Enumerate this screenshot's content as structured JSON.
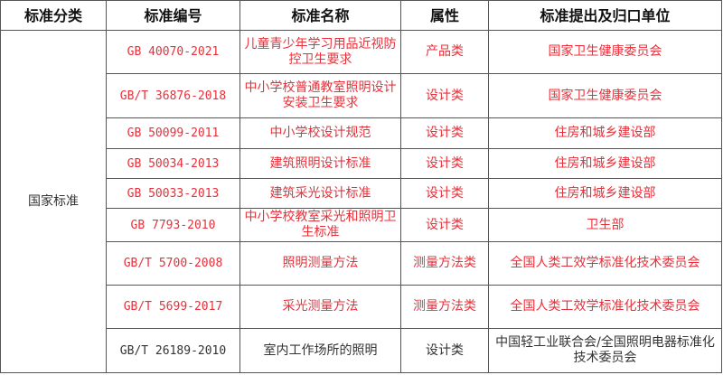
{
  "headers": [
    "标准分类",
    "标准编号",
    "标准名称",
    "属性",
    "标准提出及归口单位"
  ],
  "category": "国家标准",
  "colors": {
    "highlight": "#e8303a",
    "normal": "#333333"
  },
  "rows": [
    {
      "code": "GB 40070-2021",
      "name": "儿童青少年学习用品近视防控卫生要求",
      "type": "产品类",
      "org": "国家卫生健康委员会",
      "highlight": true
    },
    {
      "code": "GB/T 36876-2018",
      "name": "中小学校普通教室照明设计安装卫生要求",
      "type": "设计类",
      "org": "国家卫生健康委员会",
      "highlight": true
    },
    {
      "code": "GB 50099-2011",
      "name": "中小学校设计规范",
      "type": "设计类",
      "org": "住房和城乡建设部",
      "highlight": true
    },
    {
      "code": "GB 50034-2013",
      "name": "建筑照明设计标准",
      "type": "设计类",
      "org": "住房和城乡建设部",
      "highlight": true
    },
    {
      "code": "GB 50033-2013",
      "name": "建筑采光设计标准",
      "type": "设计类",
      "org": "住房和城乡建设部",
      "highlight": true
    },
    {
      "code": "GB 7793-2010",
      "name": "中小学校教室采光和照明卫生标准",
      "type": "设计类",
      "org": "卫生部",
      "highlight": true
    },
    {
      "code": "GB/T 5700-2008",
      "name": "照明测量方法",
      "type": "测量方法类",
      "org": "全国人类工效学标准化技术委员会",
      "highlight": true
    },
    {
      "code": "GB/T 5699-2017",
      "name": "采光测量方法",
      "type": "测量方法类",
      "org": "全国人类工效学标准化技术委员会",
      "highlight": true
    },
    {
      "code": "GB/T 26189-2010",
      "name": "室内工作场所的照明",
      "type": "设计类",
      "org": "中国轻工业联合会/全国照明电器标准化技术委员会",
      "highlight": false
    }
  ]
}
